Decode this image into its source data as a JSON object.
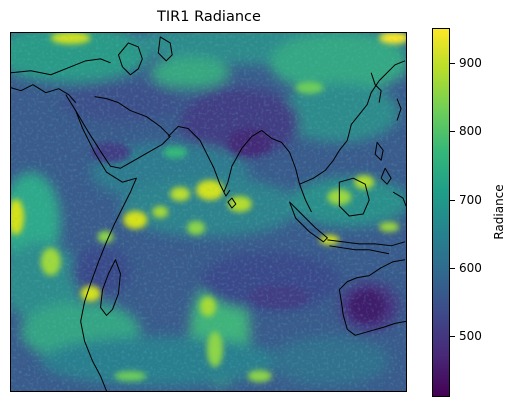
{
  "title": "TIR1 Radiance",
  "colorbar": {
    "label": "Radiance",
    "min": 410,
    "max": 952,
    "ticks": [
      {
        "value": 500,
        "label": "500"
      },
      {
        "value": 600,
        "label": "600"
      },
      {
        "value": 700,
        "label": "700"
      },
      {
        "value": 800,
        "label": "800"
      },
      {
        "value": 900,
        "label": "900"
      }
    ],
    "colormap": "viridis",
    "stops": [
      "#440154",
      "#482878",
      "#3e4989",
      "#31688e",
      "#26828e",
      "#1f9e89",
      "#35b779",
      "#6ece58",
      "#b5de2b",
      "#fde725"
    ]
  },
  "map": {
    "background_value": 560,
    "coastline_color": "#000000"
  }
}
